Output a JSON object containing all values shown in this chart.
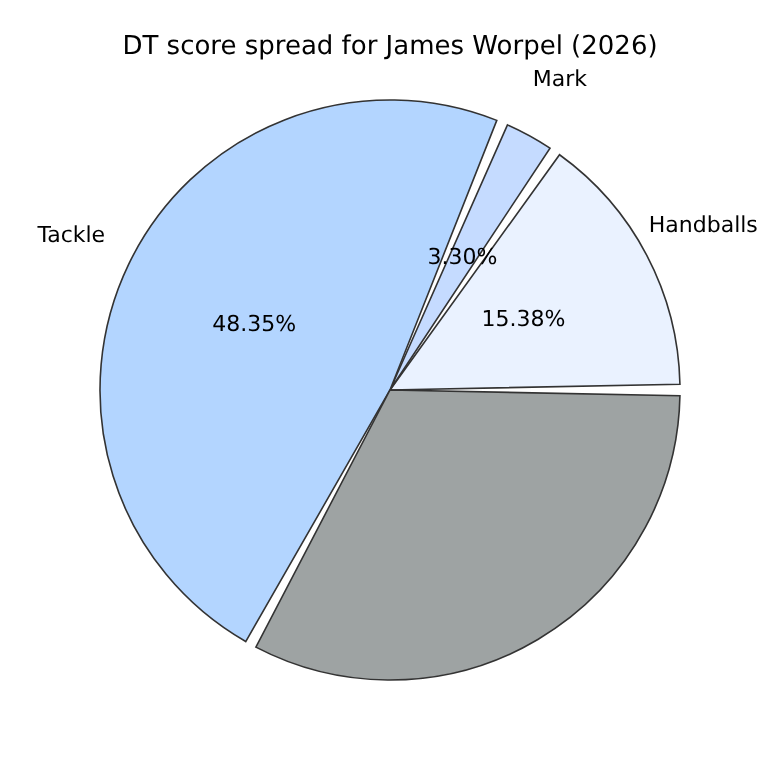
{
  "chart_data": {
    "type": "pie",
    "title": "DT score spread for James Worpel (2026)",
    "categories": [
      "Handballs",
      "Mark",
      "Tackle",
      null
    ],
    "values": [
      15.38,
      3.3,
      48.35,
      32.97
    ],
    "colors": [
      "#eaf2ff",
      "#c5dbff",
      "#b3d5ff",
      "#9ea3a3"
    ],
    "value_labels": [
      "15.38%",
      "3.30%",
      "48.35%",
      null
    ]
  }
}
